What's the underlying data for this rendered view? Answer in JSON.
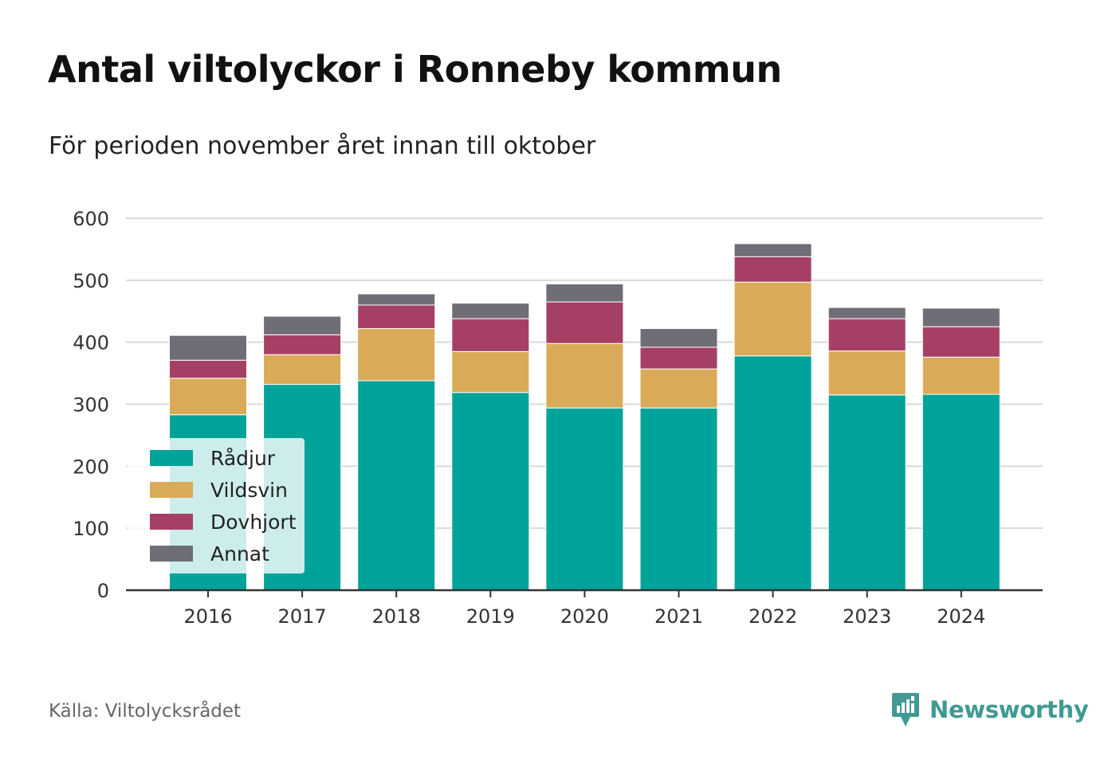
{
  "title": "Antal viltolyckor i Ronneby kommun",
  "subtitle": "För perioden november året innan till oktober",
  "source": "Källa: Viltolycksrådet",
  "brand": "Newsworthy",
  "colors": {
    "Rådjur": "#00a399",
    "Vildsvin": "#d9ab58",
    "Dovhjort": "#a63f66",
    "Annat": "#6f6d75",
    "grid": "#d9d9d9",
    "axis": "#333333",
    "brand": "#3f9a93"
  },
  "chart_data": {
    "type": "bar",
    "stacked": true,
    "title": "Antal viltolyckor i Ronneby kommun",
    "subtitle": "För perioden november året innan till oktober",
    "xlabel": "",
    "ylabel": "",
    "ylim": [
      0,
      600
    ],
    "yticks": [
      0,
      100,
      200,
      300,
      400,
      500,
      600
    ],
    "grid": true,
    "legend_position": "bottom-left",
    "categories": [
      "2016",
      "2017",
      "2018",
      "2019",
      "2020",
      "2021",
      "2022",
      "2023",
      "2024"
    ],
    "series": [
      {
        "name": "Rådjur",
        "values": [
          283,
          332,
          338,
          319,
          294,
          294,
          378,
          315,
          316
        ]
      },
      {
        "name": "Vildsvin",
        "values": [
          59,
          48,
          84,
          66,
          104,
          63,
          119,
          71,
          60
        ]
      },
      {
        "name": "Dovhjort",
        "values": [
          29,
          32,
          38,
          53,
          67,
          35,
          41,
          52,
          49
        ]
      },
      {
        "name": "Annat",
        "values": [
          40,
          30,
          18,
          25,
          29,
          30,
          21,
          18,
          30
        ]
      }
    ]
  }
}
